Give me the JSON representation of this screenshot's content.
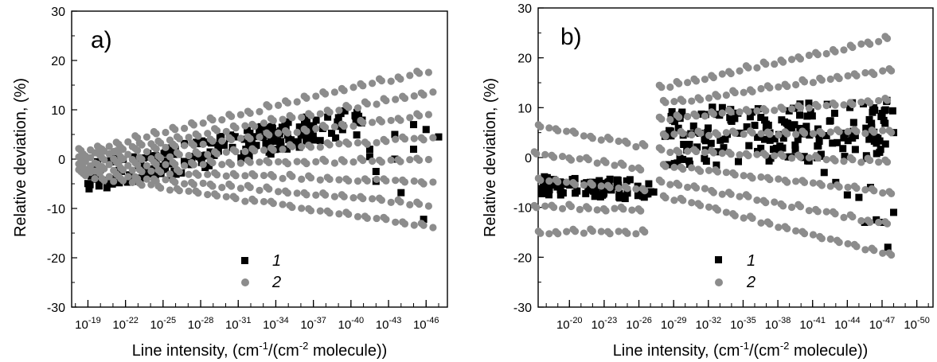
{
  "chart_data": [
    {
      "type": "scatter",
      "panel_label": "a)",
      "xlabel_main": "Line intensity, (cm",
      "xlabel_sup1": "-1",
      "xlabel_mid": "/(cm",
      "xlabel_sup2": "-2",
      "xlabel_end": " molecule))",
      "ylabel": "Relative deviation, (%)",
      "xscale": "log (decreasing to the right)",
      "xlim_exponent": [
        -17.7,
        -47.7
      ],
      "ylim": [
        -30,
        30
      ],
      "yticks": [
        -30,
        -20,
        -10,
        0,
        10,
        20,
        30
      ],
      "xtick_exponents": [
        -19,
        -22,
        -25,
        -28,
        -31,
        -34,
        -37,
        -40,
        -43,
        -46
      ],
      "xtick_base": "10",
      "grid": false,
      "legend": {
        "placement": "bottom-center",
        "entries": [
          {
            "label": "1",
            "marker": "square",
            "color": "#000000"
          },
          {
            "label": "2",
            "marker": "circle",
            "color": "#8c8c8c"
          }
        ]
      },
      "series": [
        {
          "name": "1",
          "marker": "square",
          "color": "#000000",
          "band": {
            "x_start": -18.8,
            "x_end": -41.0,
            "y_start": -4.0,
            "y_end": 8.0,
            "spread": 3.0
          },
          "points": [
            [
              -41.5,
              2.0
            ],
            [
              -41.5,
              0.5
            ],
            [
              -42.0,
              -2.5
            ],
            [
              -42.0,
              -4.5
            ],
            [
              -43.5,
              5.0
            ],
            [
              -43.5,
              0.0
            ],
            [
              -44.0,
              -6.8
            ],
            [
              -45.0,
              7.0
            ],
            [
              -45.0,
              2.0
            ],
            [
              -46.0,
              6.0
            ],
            [
              -45.8,
              -12.2
            ],
            [
              -47.0,
              4.5
            ]
          ]
        },
        {
          "name": "2",
          "marker": "circle",
          "color": "#8c8c8c",
          "fan": {
            "x_start": -18.8,
            "x_end": -46.8,
            "y0": 0,
            "top_start": 1.5,
            "top_end": 18.0,
            "bottom_start": -3.5,
            "bottom_end": -14.0,
            "lines": 8
          }
        }
      ]
    },
    {
      "type": "scatter",
      "panel_label": "b)",
      "xlabel_main": "Line intensity, (cm",
      "xlabel_sup1": "-1",
      "xlabel_mid": "/(cm",
      "xlabel_sup2": "-2",
      "xlabel_end": " molecule))",
      "ylabel": "Relative deviation, (%)",
      "xscale": "log (decreasing to the right)",
      "xlim_exponent": [
        -17.3,
        -51.4
      ],
      "ylim": [
        -30,
        30
      ],
      "yticks": [
        -30,
        -20,
        -10,
        0,
        10,
        20,
        30
      ],
      "xtick_exponents": [
        -20,
        -23,
        -26,
        -29,
        -32,
        -35,
        -38,
        -41,
        -44,
        -47,
        -50
      ],
      "xtick_base": "10",
      "grid": false,
      "legend": {
        "placement": "bottom-center",
        "entries": [
          {
            "label": "1",
            "marker": "square",
            "color": "#000000"
          },
          {
            "label": "2",
            "marker": "circle",
            "color": "#8c8c8c"
          }
        ]
      },
      "series": [
        {
          "name": "1",
          "marker": "square",
          "color": "#000000",
          "band_low": {
            "x_start": -17.5,
            "x_end": -27.5,
            "y_start": -5.5,
            "y_end": -6.5,
            "spread": 2.0
          },
          "band_high": {
            "x_start": -28.2,
            "x_end": -48.0,
            "y_start": 4.0,
            "y_end": 6.0,
            "spread": 6.0
          },
          "points": [
            [
              -42.0,
              -3.0
            ],
            [
              -43.0,
              -5.0
            ],
            [
              -44.0,
              -7.5
            ],
            [
              -45.0,
              -8.0
            ],
            [
              -46.0,
              -6.0
            ],
            [
              -46.5,
              -12.5
            ],
            [
              -47.0,
              -13.0
            ],
            [
              -47.5,
              -18.0
            ],
            [
              -48.0,
              -11.0
            ],
            [
              -45.5,
              -13.0
            ],
            [
              -48.0,
              5.0
            ]
          ]
        },
        {
          "name": "2",
          "marker": "circle",
          "color": "#8c8c8c",
          "fan_low": {
            "x_start": -17.5,
            "x_end": -26.7,
            "y0": -6,
            "top_start": 6.0,
            "top_end": 2.0,
            "bottom_start": -15.0,
            "bottom_end": -15.0,
            "lines": 5
          },
          "fan_high": {
            "x_start": -28.3,
            "x_end": -48.5,
            "y0": 4,
            "top_start": 14.0,
            "top_end": 24.0,
            "bottom_start": -8.0,
            "bottom_end": -20.0,
            "lines": 8
          }
        }
      ]
    }
  ]
}
